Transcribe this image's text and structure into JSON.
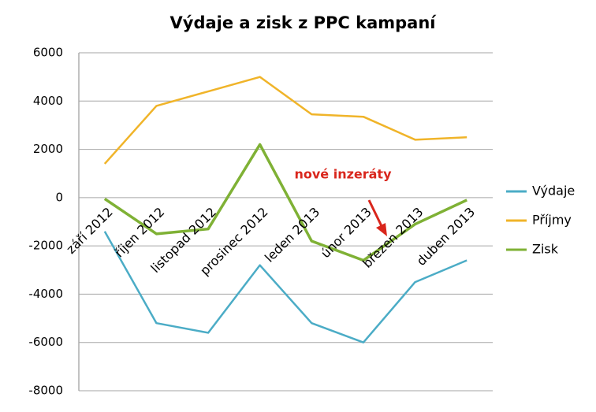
{
  "chart_data": {
    "type": "line",
    "title": "Výdaje a zisk z PPC kampaní",
    "categories": [
      "září 2012",
      "říjen 2012",
      "listopad 2012",
      "prosinec 2012",
      "leden 2013",
      "únor 2013",
      "březen 2013",
      "duben 2013"
    ],
    "series": [
      {
        "name": "Výdaje",
        "color": "#4bacc6",
        "values": [
          -1400,
          -5200,
          -5600,
          -2800,
          -5200,
          -6000,
          -3500,
          -2600
        ]
      },
      {
        "name": "Příjmy",
        "color": "#f0b429",
        "values": [
          1400,
          3800,
          4400,
          5000,
          3450,
          3350,
          2400,
          2500
        ]
      },
      {
        "name": "Zisk",
        "color": "#7fb135",
        "values": [
          -50,
          -1500,
          -1300,
          2200,
          -1800,
          -2600,
          -1100,
          -100
        ]
      }
    ],
    "ylim": [
      -8000,
      6000
    ],
    "yticks": [
      -8000,
      -6000,
      -4000,
      -2000,
      0,
      2000,
      4000,
      6000
    ],
    "grid": true,
    "legend": "right",
    "annotation": "nové inzeráty",
    "annotation_color": "#d9261c"
  }
}
